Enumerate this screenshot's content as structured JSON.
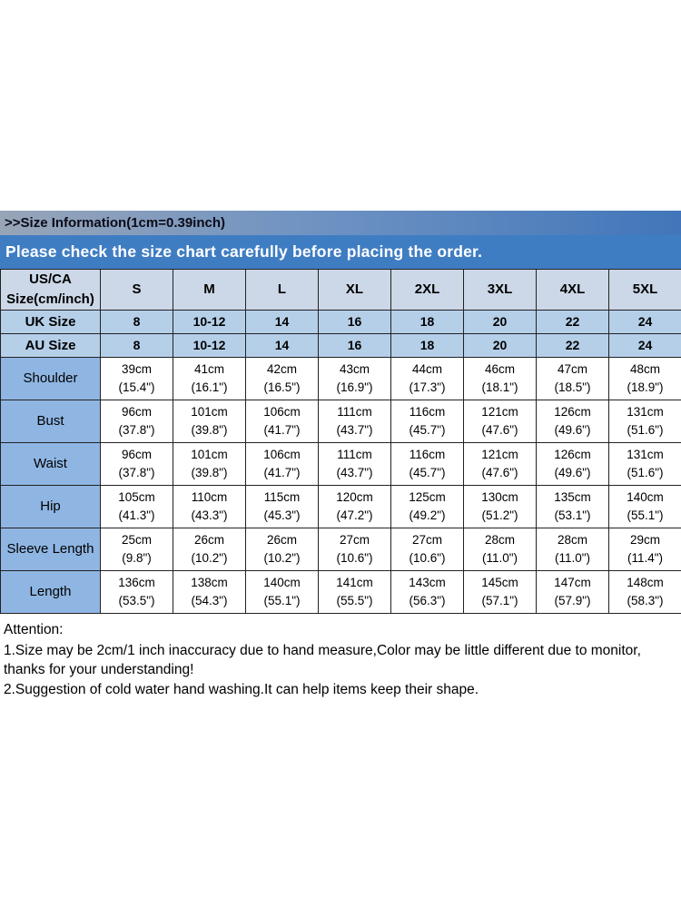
{
  "page": {
    "size_info_header": ">>Size Information(1cm=0.39inch)",
    "notice_header": "Please check the size chart carefully before placing the order."
  },
  "table": {
    "corner_label": "US/CA\nSize(cm/inch)",
    "size_headers": [
      "S",
      "M",
      "L",
      "XL",
      "2XL",
      "3XL",
      "4XL",
      "5XL"
    ],
    "region_rows": [
      {
        "label": "UK Size",
        "values": [
          "8",
          "10-12",
          "14",
          "16",
          "18",
          "20",
          "22",
          "24"
        ]
      },
      {
        "label": "AU Size",
        "values": [
          "8",
          "10-12",
          "14",
          "16",
          "18",
          "20",
          "22",
          "24"
        ]
      }
    ],
    "measurement_rows": [
      {
        "label": "Shoulder",
        "values": [
          {
            "cm": "39cm",
            "in": "(15.4\")"
          },
          {
            "cm": "41cm",
            "in": "(16.1\")"
          },
          {
            "cm": "42cm",
            "in": "(16.5\")"
          },
          {
            "cm": "43cm",
            "in": "(16.9\")"
          },
          {
            "cm": "44cm",
            "in": "(17.3\")"
          },
          {
            "cm": "46cm",
            "in": "(18.1\")"
          },
          {
            "cm": "47cm",
            "in": "(18.5\")"
          },
          {
            "cm": "48cm",
            "in": "(18.9\")"
          }
        ]
      },
      {
        "label": "Bust",
        "values": [
          {
            "cm": "96cm",
            "in": "(37.8\")"
          },
          {
            "cm": "101cm",
            "in": "(39.8\")"
          },
          {
            "cm": "106cm",
            "in": "(41.7\")"
          },
          {
            "cm": "111cm",
            "in": "(43.7\")"
          },
          {
            "cm": "116cm",
            "in": "(45.7\")"
          },
          {
            "cm": "121cm",
            "in": "(47.6\")"
          },
          {
            "cm": "126cm",
            "in": "(49.6\")"
          },
          {
            "cm": "131cm",
            "in": "(51.6\")"
          }
        ]
      },
      {
        "label": "Waist",
        "values": [
          {
            "cm": "96cm",
            "in": "(37.8\")"
          },
          {
            "cm": "101cm",
            "in": "(39.8\")"
          },
          {
            "cm": "106cm",
            "in": "(41.7\")"
          },
          {
            "cm": "111cm",
            "in": "(43.7\")"
          },
          {
            "cm": "116cm",
            "in": "(45.7\")"
          },
          {
            "cm": "121cm",
            "in": "(47.6\")"
          },
          {
            "cm": "126cm",
            "in": "(49.6\")"
          },
          {
            "cm": "131cm",
            "in": "(51.6\")"
          }
        ]
      },
      {
        "label": "Hip",
        "values": [
          {
            "cm": "105cm",
            "in": "(41.3\")"
          },
          {
            "cm": "110cm",
            "in": "(43.3\")"
          },
          {
            "cm": "115cm",
            "in": "(45.3\")"
          },
          {
            "cm": "120cm",
            "in": "(47.2\")"
          },
          {
            "cm": "125cm",
            "in": "(49.2\")"
          },
          {
            "cm": "130cm",
            "in": "(51.2\")"
          },
          {
            "cm": "135cm",
            "in": "(53.1\")"
          },
          {
            "cm": "140cm",
            "in": "(55.1\")"
          }
        ]
      },
      {
        "label": "Sleeve Length",
        "values": [
          {
            "cm": "25cm",
            "in": "(9.8\")"
          },
          {
            "cm": "26cm",
            "in": "(10.2\")"
          },
          {
            "cm": "26cm",
            "in": "(10.2\")"
          },
          {
            "cm": "27cm",
            "in": "(10.6\")"
          },
          {
            "cm": "27cm",
            "in": "(10.6\")"
          },
          {
            "cm": "28cm",
            "in": "(11.0\")"
          },
          {
            "cm": "28cm",
            "in": "(11.0\")"
          },
          {
            "cm": "29cm",
            "in": "(11.4\")"
          }
        ]
      },
      {
        "label": "Length",
        "values": [
          {
            "cm": "136cm",
            "in": "(53.5\")"
          },
          {
            "cm": "138cm",
            "in": "(54.3\")"
          },
          {
            "cm": "140cm",
            "in": "(55.1\")"
          },
          {
            "cm": "141cm",
            "in": "(55.5\")"
          },
          {
            "cm": "143cm",
            "in": "(56.3\")"
          },
          {
            "cm": "145cm",
            "in": "(57.1\")"
          },
          {
            "cm": "147cm",
            "in": "(57.9\")"
          },
          {
            "cm": "148cm",
            "in": "(58.3\")"
          }
        ]
      }
    ]
  },
  "attention": {
    "title": "Attention:",
    "note1": "1.Size may be 2cm/1 inch inaccuracy due to hand measure,Color may be little different due to monitor, thanks for your understanding!",
    "note2": "2.Suggestion of cold water hand washing.It can help items keep their shape."
  },
  "colors": {
    "banner_gradient_left": "#97a5b8",
    "banner_gradient_right": "#4176ba",
    "notice_bg": "#3f7dc3",
    "notice_text": "#ffffff",
    "header_row_bg": "#ccd8e8",
    "region_row_bg": "#b5cfe9",
    "label_col_bg": "#8fb6e3",
    "cell_bg": "#ffffff",
    "border": "#222222"
  }
}
